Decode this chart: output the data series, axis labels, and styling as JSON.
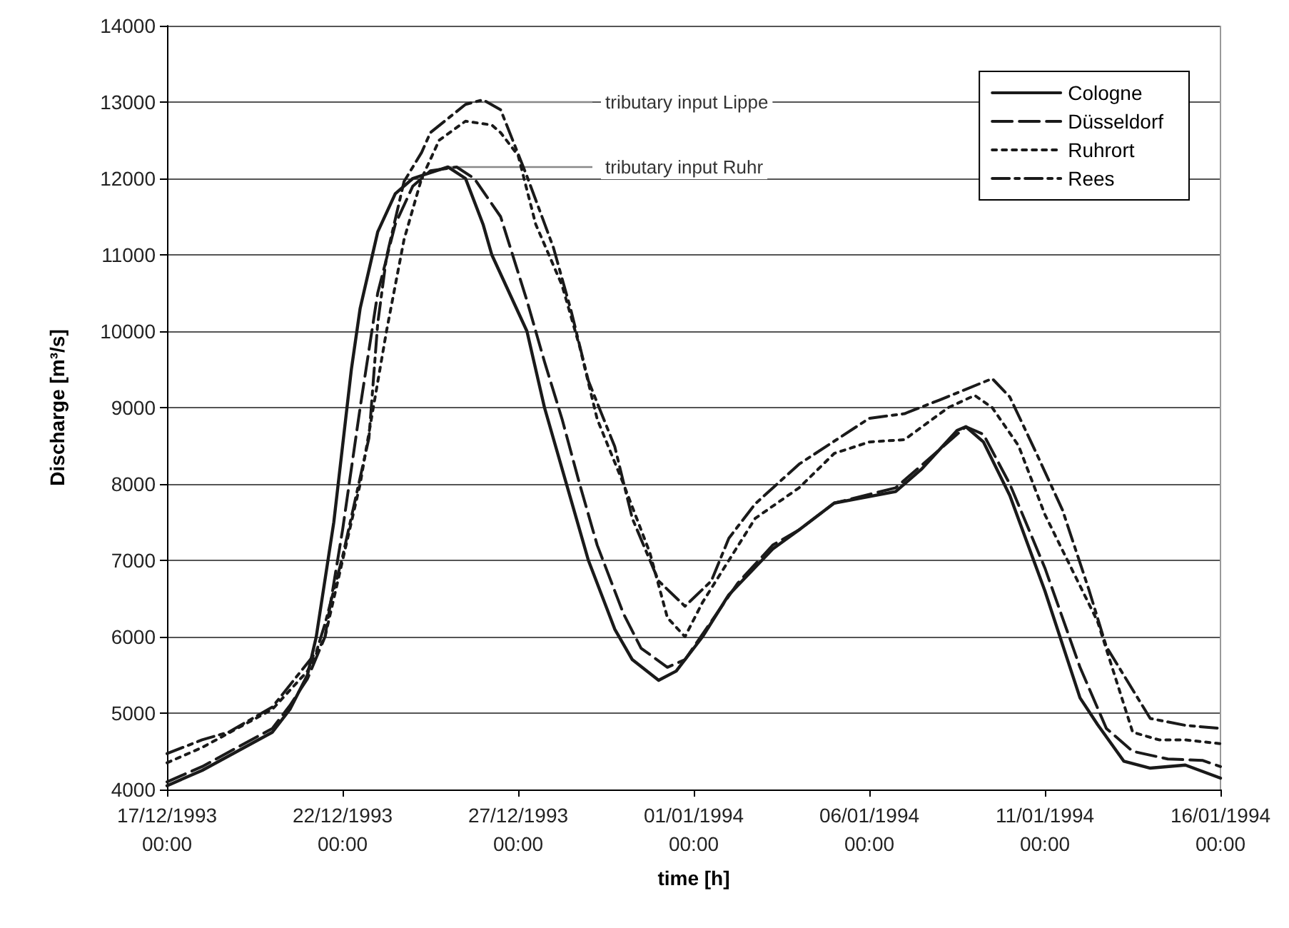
{
  "chart_data": {
    "type": "line",
    "xlabel": "time [h]",
    "ylabel": "Discharge [m³/s]",
    "xlim": [
      "1993-12-17T00:00",
      "1994-01-16T00:00"
    ],
    "xticks": [
      {
        "value": "1993-12-17T00:00",
        "label": "17/12/1993\n00:00"
      },
      {
        "value": "1993-12-22T00:00",
        "label": "22/12/1993\n00:00"
      },
      {
        "value": "1993-12-27T00:00",
        "label": "27/12/1993\n00:00"
      },
      {
        "value": "1994-01-01T00:00",
        "label": "01/01/1994\n00:00"
      },
      {
        "value": "1994-01-06T00:00",
        "label": "06/01/1994\n00:00"
      },
      {
        "value": "1994-01-11T00:00",
        "label": "11/01/1994\n00:00"
      },
      {
        "value": "1994-01-16T00:00",
        "label": "16/01/1994\n00:00"
      }
    ],
    "ylim": [
      4000,
      14000
    ],
    "yticks": [
      4000,
      5000,
      6000,
      7000,
      8000,
      9000,
      10000,
      11000,
      12000,
      13000,
      14000
    ],
    "grid": "y",
    "legend": "top right",
    "marker": "none",
    "annotations": [
      {
        "text": "tributary input Lippe",
        "x": "1993-12-26T00:00",
        "y": 13000
      },
      {
        "text": "tributary input Ruhr",
        "x": "1993-12-25T00:00",
        "y": 12150
      }
    ],
    "series": [
      {
        "name": "Cologne",
        "color": "#1a1a1a",
        "line_style": "solid",
        "x": [
          "1993-12-17T00:00",
          "1993-12-18T00:00",
          "1993-12-19T00:00",
          "1993-12-20T00:00",
          "1993-12-20T12:00",
          "1993-12-21T00:00",
          "1993-12-21T06:00",
          "1993-12-21T18:00",
          "1993-12-22T00:00",
          "1993-12-22T06:00",
          "1993-12-22T12:00",
          "1993-12-23T00:00",
          "1993-12-23T12:00",
          "1993-12-24T00:00",
          "1993-12-25T00:00",
          "1993-12-25T12:00",
          "1993-12-26T00:00",
          "1993-12-26T06:00",
          "1993-12-27T06:00",
          "1993-12-27T18:00",
          "1993-12-28T12:00",
          "1993-12-29T00:00",
          "1993-12-29T18:00",
          "1993-12-30T06:00",
          "1993-12-31T00:00",
          "1993-12-31T12:00",
          "1994-01-01T06:00",
          "1994-01-02T00:00",
          "1994-01-03T06:00",
          "1994-01-04T00:00",
          "1994-01-05T00:00",
          "1994-01-06T18:00",
          "1994-01-07T12:00",
          "1994-01-08T12:00",
          "1994-01-08T18:00",
          "1994-01-09T06:00",
          "1994-01-10T00:00",
          "1994-01-11T00:00",
          "1994-01-12T00:00",
          "1994-01-12T12:00",
          "1994-01-13T06:00",
          "1994-01-14T00:00",
          "1994-01-15T00:00",
          "1994-01-16T00:00"
        ],
        "values": [
          4050,
          4250,
          4500,
          4750,
          5050,
          5500,
          6000,
          7500,
          8500,
          9500,
          10300,
          11300,
          11800,
          12000,
          12150,
          12000,
          11400,
          11000,
          10000,
          9000,
          7800,
          7000,
          6100,
          5700,
          5430,
          5550,
          6000,
          6550,
          7150,
          7400,
          7750,
          7900,
          8200,
          8700,
          8750,
          8550,
          7850,
          6600,
          5200,
          4850,
          4370,
          4280,
          4320,
          4150
        ]
      },
      {
        "name": "Düsseldorf",
        "color": "#1a1a1a",
        "line_style": "dashed",
        "x": [
          "1993-12-17T00:00",
          "1993-12-18T00:00",
          "1993-12-19T00:00",
          "1993-12-20T00:00",
          "1993-12-20T12:00",
          "1993-12-21T00:00",
          "1993-12-21T12:00",
          "1993-12-22T00:00",
          "1993-12-22T12:00",
          "1993-12-23T00:00",
          "1993-12-23T12:00",
          "1993-12-24T00:00",
          "1993-12-24T12:00",
          "1993-12-25T06:00",
          "1993-12-25T18:00",
          "1993-12-26T12:00",
          "1993-12-27T06:00",
          "1993-12-27T18:00",
          "1993-12-28T06:00",
          "1993-12-28T18:00",
          "1993-12-29T06:00",
          "1993-12-30T00:00",
          "1993-12-30T12:00",
          "1993-12-31T06:00",
          "1993-12-31T18:00",
          "1994-01-01T12:00",
          "1994-01-02T06:00",
          "1994-01-03T06:00",
          "1994-01-04T00:00",
          "1994-01-05T00:00",
          "1994-01-06T18:00",
          "1994-01-07T12:00",
          "1994-01-08T18:00",
          "1994-01-09T06:00",
          "1994-01-10T00:00",
          "1994-01-11T00:00",
          "1994-01-12T00:00",
          "1994-01-12T18:00",
          "1994-01-13T12:00",
          "1994-01-14T12:00",
          "1994-01-15T12:00",
          "1994-01-16T00:00"
        ],
        "values": [
          4100,
          4300,
          4550,
          4800,
          5100,
          5450,
          6000,
          7400,
          9000,
          10500,
          11400,
          11900,
          12100,
          12150,
          12000,
          11500,
          10400,
          9600,
          8850,
          8000,
          7200,
          6300,
          5850,
          5600,
          5700,
          6200,
          6700,
          7200,
          7400,
          7750,
          7950,
          8250,
          8750,
          8650,
          8000,
          6900,
          5600,
          4800,
          4500,
          4400,
          4380,
          4300
        ]
      },
      {
        "name": "Ruhrort",
        "color": "#1a1a1a",
        "line_style": "dotted",
        "x": [
          "1993-12-17T00:00",
          "1993-12-18T00:00",
          "1993-12-19T00:00",
          "1993-12-20T00:00",
          "1993-12-21T00:00",
          "1993-12-21T12:00",
          "1993-12-22T00:00",
          "1993-12-22T12:00",
          "1993-12-22T21:00",
          "1993-12-23T06:00",
          "1993-12-23T18:00",
          "1993-12-24T06:00",
          "1993-12-24T18:00",
          "1993-12-25T12:00",
          "1993-12-26T06:00",
          "1993-12-26T12:00",
          "1993-12-27T00:00",
          "1993-12-27T12:00",
          "1993-12-28T06:00",
          "1993-12-28T18:00",
          "1993-12-29T06:00",
          "1993-12-30T00:00",
          "1993-12-30T18:00",
          "1993-12-31T06:00",
          "1993-12-31T18:00",
          "1994-01-01T06:00",
          "1994-01-02T00:00",
          "1994-01-02T18:00",
          "1994-01-04T00:00",
          "1994-01-05T00:00",
          "1994-01-06T00:00",
          "1994-01-07T00:00",
          "1994-01-08T06:00",
          "1994-01-09T00:00",
          "1994-01-09T12:00",
          "1994-01-10T06:00",
          "1994-01-11T00:00",
          "1994-01-12T12:00",
          "1994-01-13T12:00",
          "1994-01-14T06:00",
          "1994-01-15T00:00",
          "1994-01-16T00:00"
        ],
        "values": [
          4350,
          4550,
          4800,
          5050,
          5550,
          6000,
          7000,
          8000,
          9000,
          10000,
          11200,
          12000,
          12500,
          12750,
          12700,
          12600,
          12300,
          11400,
          10600,
          9800,
          8850,
          8000,
          7100,
          6250,
          6000,
          6450,
          7000,
          7550,
          7950,
          8400,
          8550,
          8580,
          9000,
          9160,
          9000,
          8500,
          7600,
          6200,
          4750,
          4650,
          4650,
          4600
        ]
      },
      {
        "name": "Rees",
        "color": "#1a1a1a",
        "line_style": "dashdot",
        "x": [
          "1993-12-17T00:00",
          "1993-12-18T00:00",
          "1993-12-18T18:00",
          "1993-12-20T00:00",
          "1993-12-21T06:00",
          "1993-12-21T12:00",
          "1993-12-22T00:00",
          "1993-12-22T18:00",
          "1993-12-23T00:00",
          "1993-12-23T06:00",
          "1993-12-23T18:00",
          "1993-12-24T06:00",
          "1993-12-24T12:00",
          "1993-12-25T12:00",
          "1993-12-26T00:00",
          "1993-12-26T12:00",
          "1993-12-27T06:00",
          "1993-12-28T00:00",
          "1993-12-28T12:00",
          "1993-12-29T00:00",
          "1993-12-29T18:00",
          "1993-12-30T06:00",
          "1993-12-31T00:00",
          "1993-12-31T18:00",
          "1994-01-01T12:00",
          "1994-01-02T00:00",
          "1994-01-02T18:00",
          "1994-01-04T00:00",
          "1994-01-06T00:00",
          "1994-01-07T00:00",
          "1994-01-08T00:00",
          "1994-01-09T12:00",
          "1994-01-10T00:00",
          "1994-01-10T18:00",
          "1994-01-11T12:00",
          "1994-01-12T06:00",
          "1994-01-12T18:00",
          "1994-01-14T00:00",
          "1994-01-15T00:00",
          "1994-01-16T00:00"
        ],
        "values": [
          4470,
          4650,
          4750,
          5080,
          5800,
          6170,
          7050,
          8600,
          10100,
          10970,
          11960,
          12340,
          12600,
          12970,
          13030,
          12900,
          12030,
          11100,
          10280,
          9350,
          8490,
          7550,
          6730,
          6400,
          6730,
          7290,
          7740,
          8260,
          8860,
          8920,
          9100,
          9380,
          9140,
          8410,
          7660,
          6620,
          5870,
          4930,
          4840,
          4800
        ]
      }
    ]
  }
}
